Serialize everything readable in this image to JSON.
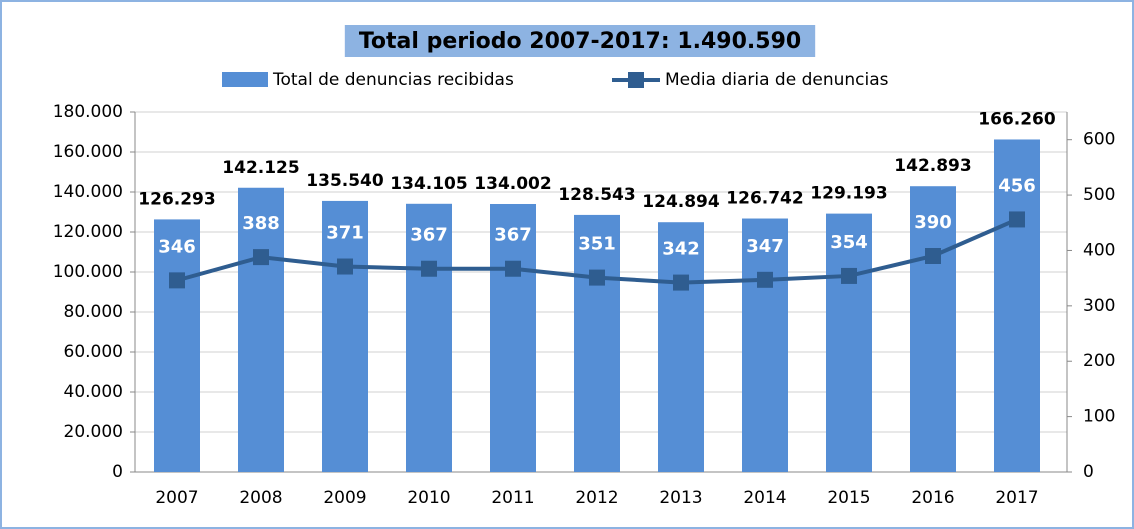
{
  "chart_data": {
    "type": "bar",
    "title": "Total periodo 2007-2017: 1.490.590",
    "categories": [
      "2007",
      "2008",
      "2009",
      "2010",
      "2011",
      "2012",
      "2013",
      "2014",
      "2015",
      "2016",
      "2017"
    ],
    "series": [
      {
        "name": "Total de denuncias recibidas",
        "type": "bar",
        "color": "#558ed5",
        "values": [
          126293,
          142125,
          135540,
          134105,
          134002,
          128543,
          124894,
          126742,
          129193,
          142893,
          166260
        ],
        "value_labels": [
          "126.293",
          "142.125",
          "135.540",
          "134.105",
          "134.002",
          "128.543",
          "124.894",
          "126.742",
          "129.193",
          "142.893",
          "166.260"
        ]
      },
      {
        "name": "Media diaria de denuncias",
        "type": "line",
        "axis": "y2",
        "color": "#2f5d90",
        "values": [
          346,
          388,
          371,
          367,
          367,
          351,
          342,
          347,
          354,
          390,
          456
        ]
      }
    ],
    "ylim": [
      0,
      180000
    ],
    "yticks": [
      {
        "value": 0,
        "label": "0"
      },
      {
        "value": 20000,
        "label": "20.000"
      },
      {
        "value": 40000,
        "label": "40.000"
      },
      {
        "value": 60000,
        "label": "60.000"
      },
      {
        "value": 80000,
        "label": "80.000"
      },
      {
        "value": 100000,
        "label": "100.000"
      },
      {
        "value": 120000,
        "label": "120.000"
      },
      {
        "value": 140000,
        "label": "140.000"
      },
      {
        "value": 160000,
        "label": "160.000"
      },
      {
        "value": 180000,
        "label": "180.000"
      }
    ],
    "y2lim": [
      0,
      650
    ],
    "y2ticks": [
      0,
      100,
      200,
      300,
      400,
      500,
      600
    ],
    "grid": true
  }
}
